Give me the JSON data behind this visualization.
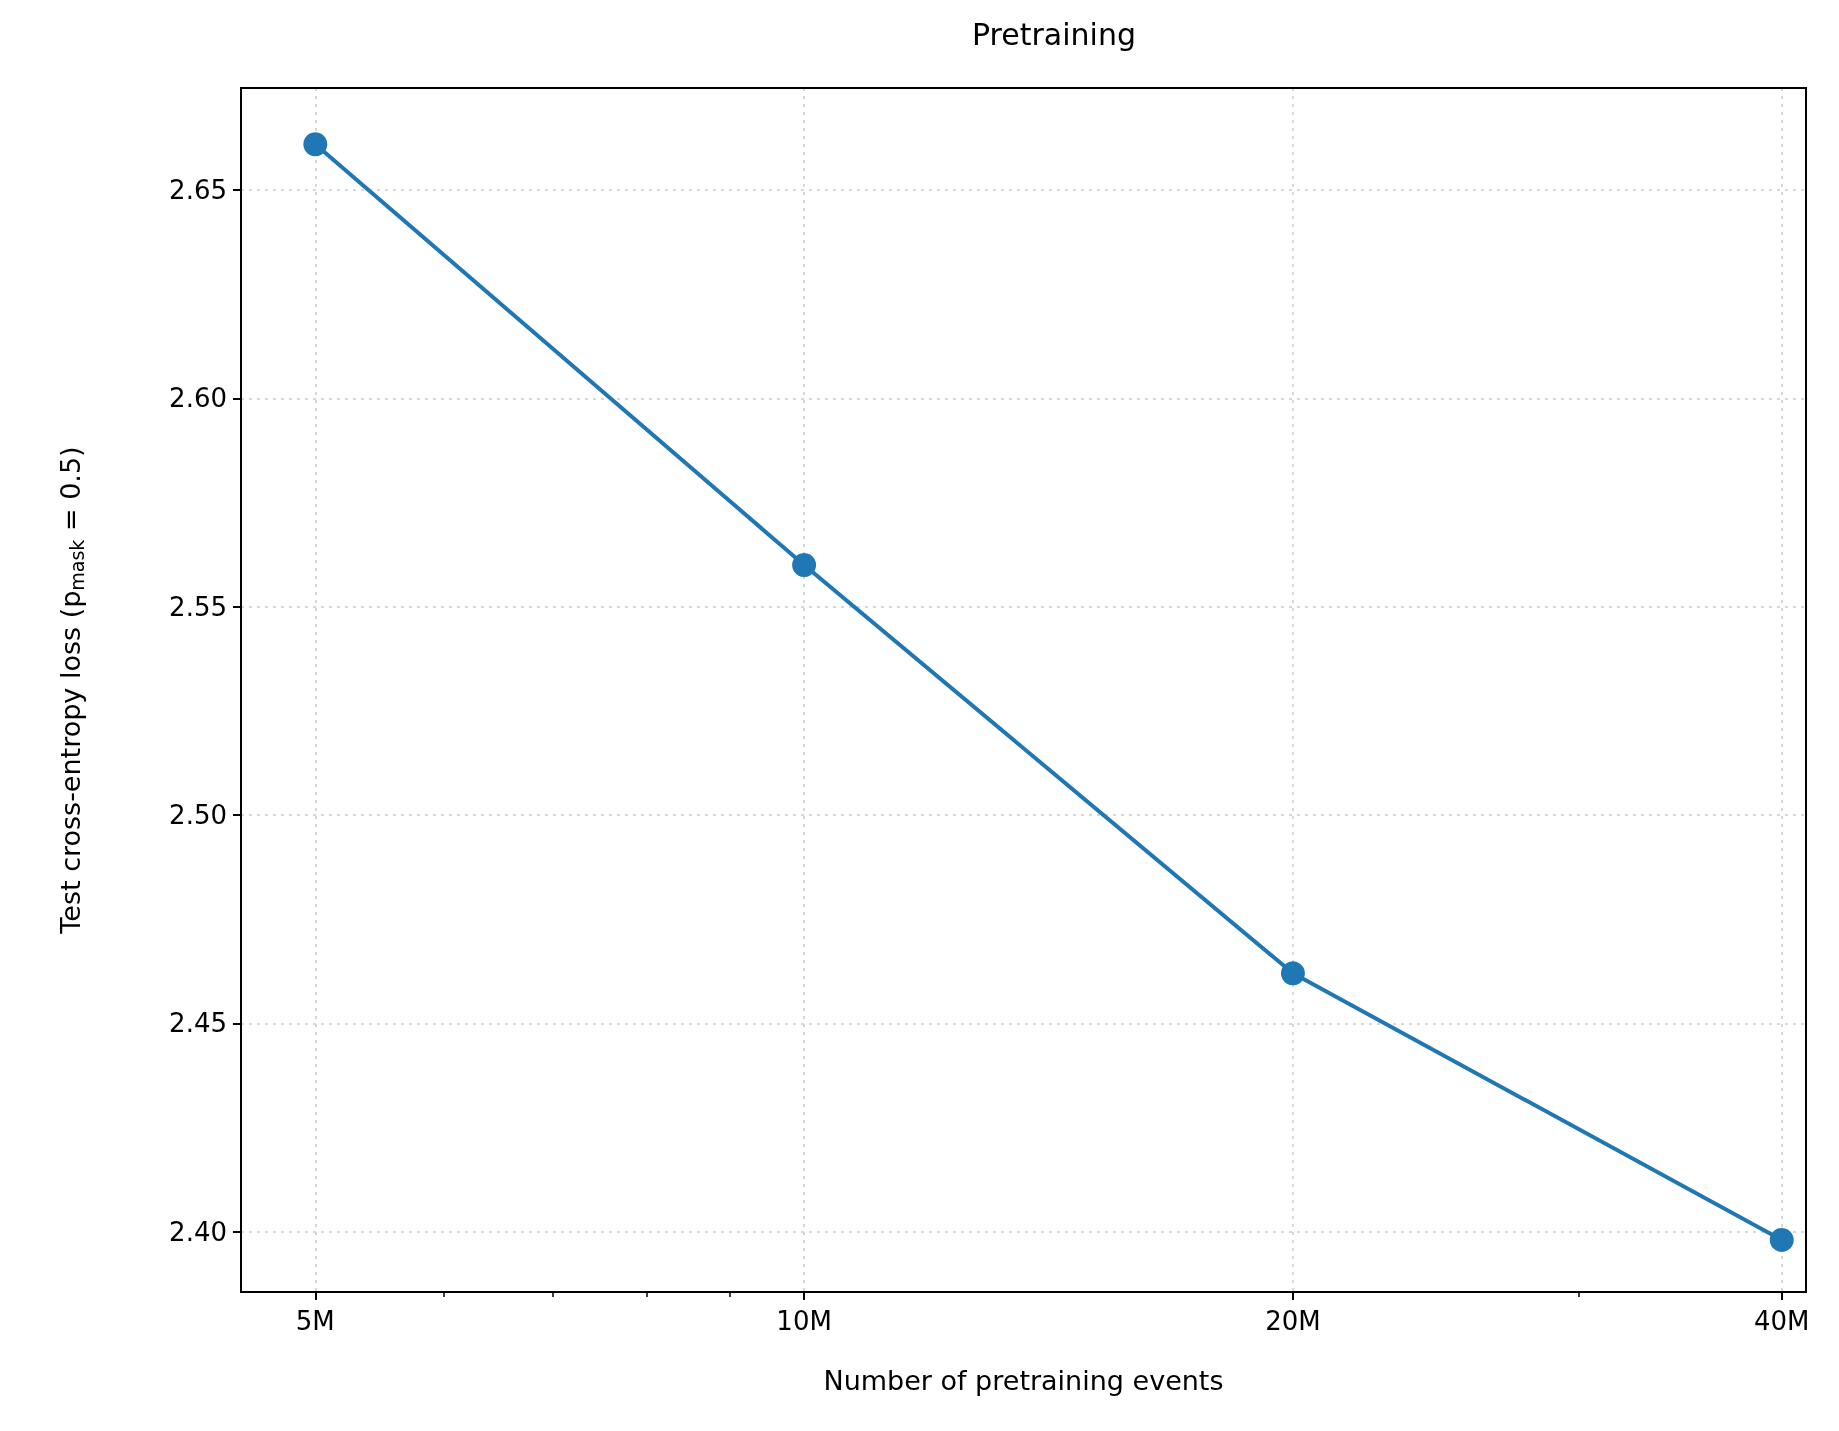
{
  "chart_data": {
    "type": "line",
    "title": "Pretraining",
    "xlabel": "Number of pretraining events",
    "ylabel": "Test cross-entropy loss (p$_{mask}$ = 0.5)",
    "x": [
      5000000,
      10000000,
      20000000,
      40000000
    ],
    "series": [
      {
        "color": "#1f77b4",
        "values": [
          2.661,
          2.56,
          2.462,
          2.398
        ]
      }
    ],
    "log": "x",
    "marker": "circle",
    "line_style": "solid",
    "grid": true,
    "xlim": [
      4500000,
      41400000
    ],
    "xticks": [
      {
        "value": 5000000,
        "label": "5M"
      },
      {
        "value": 6000000,
        "label": null
      },
      {
        "value": 7000000,
        "label": null
      },
      {
        "value": 8000000,
        "label": null
      },
      {
        "value": 9000000,
        "label": null
      },
      {
        "value": 10000000,
        "label": "10M"
      },
      {
        "value": 20000000,
        "label": "20M"
      },
      {
        "value": 30000000,
        "label": null
      },
      {
        "value": 40000000,
        "label": "40M"
      }
    ],
    "ylim": [
      2.3855,
      2.6745
    ],
    "yticks": [
      {
        "value": 2.4,
        "label": "2.40"
      },
      2.45,
      {
        "value": 2.5,
        "label": "2.50"
      },
      2.55,
      {
        "value": 2.6,
        "label": "2.60"
      },
      2.65
    ]
  }
}
